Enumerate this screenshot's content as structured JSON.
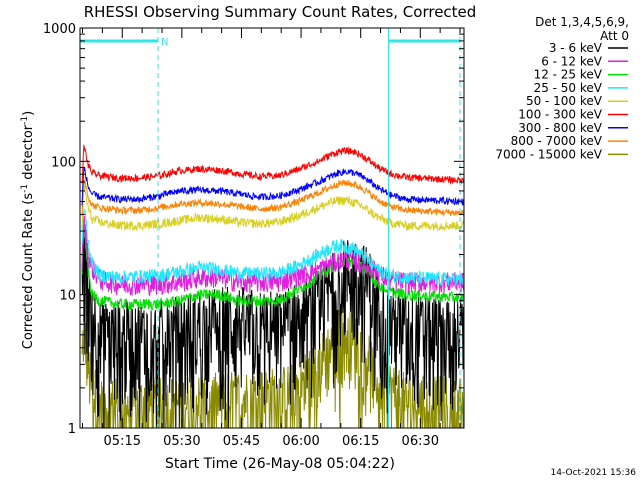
{
  "chart_data": {
    "type": "line",
    "title": "RHESSI Observing Summary Count Rates, Corrected",
    "xlabel": "Start Time (26-May-08 05:04:22)",
    "ylabel_main": "Corrected Count Rate (s",
    "ylabel_sup1": "-1",
    "ylabel_mid": " detector",
    "ylabel_sup2": "-1",
    "ylabel_end": ")",
    "x_scale": "time",
    "y_scale": "log",
    "x_range": [
      "05:04:22",
      "06:41:00"
    ],
    "ylim": [
      1,
      1000
    ],
    "x_ticks": [
      "05:15",
      "05:30",
      "05:45",
      "06:00",
      "06:15",
      "06:30"
    ],
    "y_ticks": [
      "1",
      "10",
      "100",
      "1000"
    ],
    "legend_header": [
      "Det 1,3,4,5,6,9,",
      "Att 0"
    ],
    "legend_position": "right",
    "footer_date": "14-Oct-2021 15:36",
    "flag_label": "N",
    "markers": {
      "night_intervals": [
        [
          "05:04:22",
          "05:24:00"
        ],
        [
          "06:22:00",
          "06:40:00"
        ]
      ],
      "dashed_lines": [
        "05:24:00",
        "06:40:00"
      ],
      "solid_lines": [
        "05:04:22",
        "06:22:00"
      ],
      "color": "#33e6e6"
    },
    "series": [
      {
        "name": "3 - 6 keV",
        "color": "#000000",
        "noise": 0.8,
        "values": [
          [
            0,
            0
          ],
          [
            1,
            25
          ],
          [
            2,
            12
          ],
          [
            3,
            8
          ],
          [
            4,
            6
          ],
          [
            5,
            5
          ],
          [
            8,
            5
          ],
          [
            12,
            5
          ],
          [
            20,
            5
          ],
          [
            25,
            5.5
          ],
          [
            30,
            6
          ],
          [
            35,
            6.5
          ],
          [
            40,
            6.5
          ],
          [
            45,
            6
          ],
          [
            50,
            6
          ],
          [
            55,
            7
          ],
          [
            60,
            8.5
          ],
          [
            63,
            11
          ],
          [
            65,
            13
          ],
          [
            67,
            15
          ],
          [
            69,
            15
          ],
          [
            71,
            14
          ],
          [
            73,
            12
          ],
          [
            75,
            9
          ],
          [
            77,
            7
          ],
          [
            80,
            6
          ],
          [
            85,
            5.5
          ],
          [
            96,
            5.5
          ]
        ]
      },
      {
        "name": "6 - 12 keV",
        "color": "#e020e0",
        "noise": 0.18,
        "values": [
          [
            0,
            0
          ],
          [
            1,
            35
          ],
          [
            2,
            20
          ],
          [
            3,
            16
          ],
          [
            5,
            13
          ],
          [
            10,
            12
          ],
          [
            20,
            12
          ],
          [
            25,
            12.5
          ],
          [
            30,
            13.5
          ],
          [
            35,
            13.5
          ],
          [
            40,
            12.5
          ],
          [
            45,
            12.5
          ],
          [
            50,
            12.5
          ],
          [
            55,
            14
          ],
          [
            60,
            15.5
          ],
          [
            63,
            17
          ],
          [
            65,
            18
          ],
          [
            67,
            18.5
          ],
          [
            69,
            18
          ],
          [
            71,
            17
          ],
          [
            73,
            16
          ],
          [
            75,
            14.5
          ],
          [
            78,
            13
          ],
          [
            82,
            12.5
          ],
          [
            96,
            12.5
          ]
        ]
      },
      {
        "name": "12 - 25 keV",
        "color": "#00e000",
        "noise": 0.1,
        "values": [
          [
            0,
            0
          ],
          [
            1,
            30
          ],
          [
            2,
            15
          ],
          [
            3,
            10
          ],
          [
            5,
            9
          ],
          [
            10,
            8.5
          ],
          [
            20,
            8.5
          ],
          [
            25,
            9
          ],
          [
            30,
            10
          ],
          [
            35,
            10
          ],
          [
            40,
            9
          ],
          [
            45,
            9
          ],
          [
            50,
            9
          ],
          [
            55,
            11
          ],
          [
            60,
            13.5
          ],
          [
            63,
            16
          ],
          [
            65,
            17.5
          ],
          [
            67,
            18
          ],
          [
            69,
            17.5
          ],
          [
            71,
            16
          ],
          [
            73,
            14
          ],
          [
            75,
            12
          ],
          [
            78,
            10.5
          ],
          [
            82,
            10
          ],
          [
            96,
            9.5
          ]
        ]
      },
      {
        "name": "25 - 50 keV",
        "color": "#20e6ff",
        "noise": 0.12,
        "values": [
          [
            0,
            0
          ],
          [
            1,
            45
          ],
          [
            2,
            25
          ],
          [
            3,
            17
          ],
          [
            5,
            14
          ],
          [
            10,
            13.5
          ],
          [
            20,
            14
          ],
          [
            25,
            15
          ],
          [
            30,
            16
          ],
          [
            35,
            15.5
          ],
          [
            40,
            14.5
          ],
          [
            45,
            14.5
          ],
          [
            50,
            14.5
          ],
          [
            55,
            16.5
          ],
          [
            60,
            20
          ],
          [
            63,
            22.5
          ],
          [
            65,
            23.5
          ],
          [
            67,
            23
          ],
          [
            69,
            22
          ],
          [
            71,
            20
          ],
          [
            73,
            17.5
          ],
          [
            75,
            15.5
          ],
          [
            78,
            14
          ],
          [
            82,
            13.5
          ],
          [
            96,
            13
          ]
        ]
      },
      {
        "name": "50 - 100 keV",
        "color": "#d8d020",
        "noise": 0.08,
        "values": [
          [
            0,
            0
          ],
          [
            1,
            65
          ],
          [
            2,
            45
          ],
          [
            3,
            37
          ],
          [
            5,
            35
          ],
          [
            10,
            33
          ],
          [
            15,
            33
          ],
          [
            20,
            34
          ],
          [
            25,
            36
          ],
          [
            30,
            38
          ],
          [
            35,
            37
          ],
          [
            40,
            35
          ],
          [
            45,
            34
          ],
          [
            50,
            35
          ],
          [
            55,
            39
          ],
          [
            60,
            45
          ],
          [
            63,
            49
          ],
          [
            65,
            51
          ],
          [
            67,
            51
          ],
          [
            69,
            49
          ],
          [
            71,
            46
          ],
          [
            73,
            42
          ],
          [
            75,
            38
          ],
          [
            78,
            35
          ],
          [
            82,
            33
          ],
          [
            96,
            33
          ]
        ]
      },
      {
        "name": "100 - 300 keV",
        "color": "#ff0000",
        "noise": 0.06,
        "values": [
          [
            0,
            0
          ],
          [
            1,
            130
          ],
          [
            2,
            95
          ],
          [
            3,
            82
          ],
          [
            5,
            78
          ],
          [
            10,
            75
          ],
          [
            15,
            75
          ],
          [
            20,
            78
          ],
          [
            25,
            85
          ],
          [
            30,
            88
          ],
          [
            35,
            86
          ],
          [
            40,
            81
          ],
          [
            45,
            77
          ],
          [
            50,
            78
          ],
          [
            55,
            87
          ],
          [
            60,
            100
          ],
          [
            63,
            112
          ],
          [
            65,
            118
          ],
          [
            67,
            120
          ],
          [
            69,
            118
          ],
          [
            71,
            110
          ],
          [
            73,
            100
          ],
          [
            75,
            90
          ],
          [
            78,
            81
          ],
          [
            82,
            76
          ],
          [
            96,
            72
          ]
        ]
      },
      {
        "name": "300 - 800 keV",
        "color": "#0000ff",
        "noise": 0.06,
        "values": [
          [
            0,
            0
          ],
          [
            1,
            90
          ],
          [
            2,
            65
          ],
          [
            3,
            57
          ],
          [
            5,
            54
          ],
          [
            10,
            52
          ],
          [
            15,
            52
          ],
          [
            20,
            55
          ],
          [
            25,
            60
          ],
          [
            30,
            61
          ],
          [
            35,
            60
          ],
          [
            40,
            57
          ],
          [
            45,
            54
          ],
          [
            50,
            55
          ],
          [
            55,
            61
          ],
          [
            60,
            70
          ],
          [
            63,
            77
          ],
          [
            65,
            82
          ],
          [
            67,
            84
          ],
          [
            69,
            82
          ],
          [
            71,
            77
          ],
          [
            73,
            70
          ],
          [
            75,
            63
          ],
          [
            78,
            56
          ],
          [
            82,
            52
          ],
          [
            96,
            50
          ]
        ]
      },
      {
        "name": "800 - 7000 keV",
        "color": "#ff8000",
        "noise": 0.06,
        "values": [
          [
            0,
            0
          ],
          [
            1,
            75
          ],
          [
            2,
            55
          ],
          [
            3,
            47
          ],
          [
            5,
            45
          ],
          [
            10,
            43
          ],
          [
            15,
            43
          ],
          [
            20,
            45
          ],
          [
            25,
            48
          ],
          [
            30,
            49
          ],
          [
            35,
            48
          ],
          [
            40,
            46
          ],
          [
            45,
            44
          ],
          [
            50,
            45
          ],
          [
            55,
            50
          ],
          [
            60,
            58
          ],
          [
            63,
            64
          ],
          [
            65,
            68
          ],
          [
            67,
            69
          ],
          [
            69,
            67
          ],
          [
            71,
            63
          ],
          [
            73,
            57
          ],
          [
            75,
            51
          ],
          [
            78,
            46
          ],
          [
            82,
            43
          ],
          [
            96,
            41
          ]
        ]
      },
      {
        "name": "7000 - 15000 keV",
        "color": "#8a8a00",
        "noise": 0.6,
        "values": [
          [
            0,
            0
          ],
          [
            1,
            6
          ],
          [
            2,
            3
          ],
          [
            3,
            2
          ],
          [
            5,
            1.5
          ],
          [
            10,
            1.5
          ],
          [
            20,
            1.5
          ],
          [
            30,
            1.6
          ],
          [
            40,
            1.7
          ],
          [
            50,
            1.8
          ],
          [
            55,
            2
          ],
          [
            60,
            3
          ],
          [
            63,
            4
          ],
          [
            65,
            5
          ],
          [
            67,
            5
          ],
          [
            69,
            4.5
          ],
          [
            71,
            4
          ],
          [
            73,
            3
          ],
          [
            75,
            2.5
          ],
          [
            78,
            2
          ],
          [
            82,
            1.6
          ],
          [
            96,
            1.5
          ]
        ]
      }
    ]
  }
}
